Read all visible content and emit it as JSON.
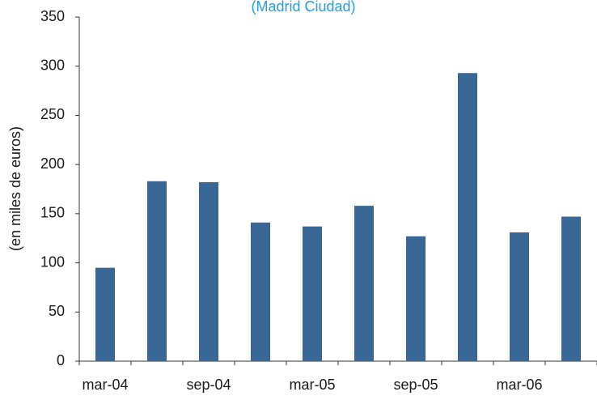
{
  "chart_data": {
    "type": "bar",
    "subtitle": "(Madrid Ciudad)",
    "y_label": "(en miles de euros)",
    "categories": [
      "mar-04",
      null,
      "sep-04",
      null,
      "mar-05",
      null,
      "sep-05",
      null,
      "mar-06",
      null
    ],
    "values": [
      95,
      183,
      182,
      141,
      137,
      158,
      127,
      293,
      131,
      147
    ],
    "color": "#3a6896",
    "subtitle_color": "#1e9fe0",
    "ylim": [
      0,
      350
    ],
    "yticks": [
      0,
      50,
      100,
      150,
      200,
      250,
      300,
      350
    ],
    "grid": false
  }
}
